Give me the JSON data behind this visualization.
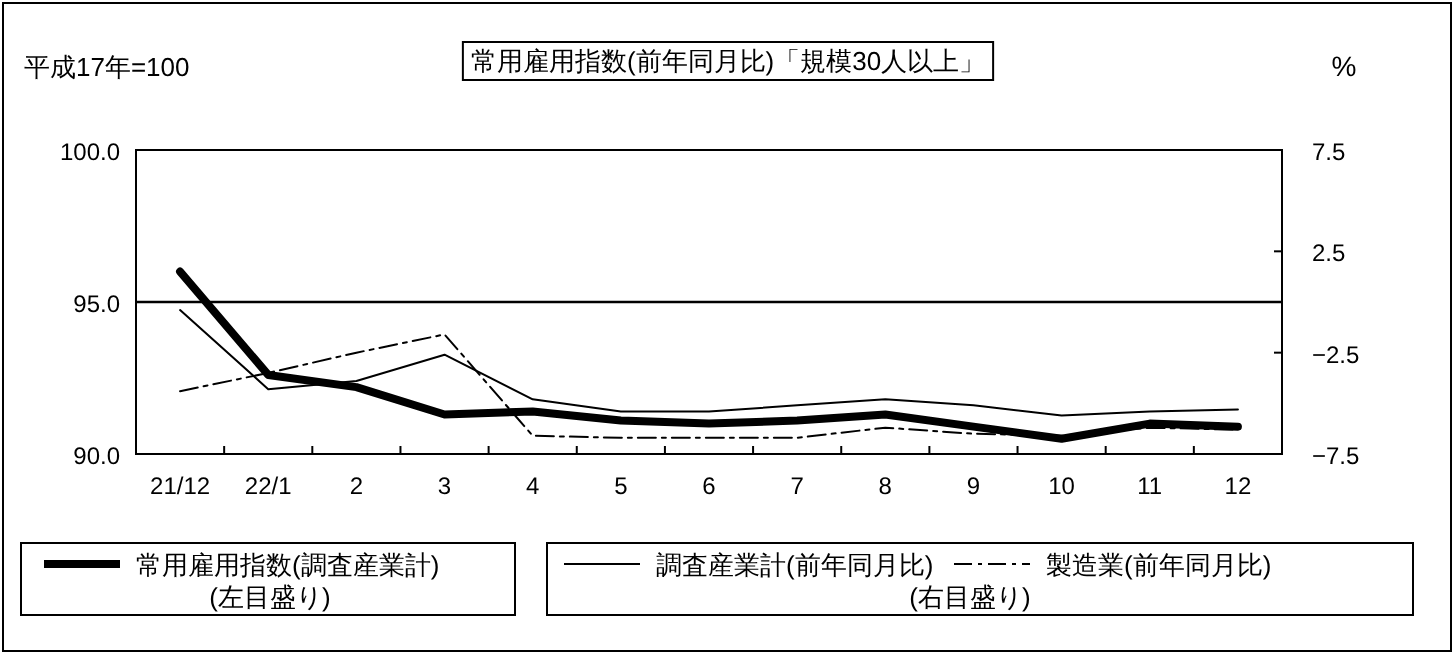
{
  "chart_data": {
    "type": "line",
    "title": "常用雇用指数(前年同月比)「規模30人以上」",
    "y2label": "%",
    "annotations": [
      "平成17年=100",
      "(左目盛り)",
      "(右目盛り)"
    ],
    "categories": [
      "21/12",
      "22/1",
      "2",
      "3",
      "4",
      "5",
      "6",
      "7",
      "8",
      "9",
      "10",
      "11",
      "12"
    ],
    "series": [
      {
        "name": "常用雇用指数(調査産業計)",
        "color": "#000000",
        "axis": "y",
        "line_style": "solid",
        "values": [
          96.0,
          92.6,
          92.2,
          91.3,
          91.4,
          91.1,
          91.0,
          91.1,
          91.3,
          90.9,
          90.5,
          91.0,
          90.9
        ]
      },
      {
        "name": "調査産業計(前年同月比)",
        "color": "#000000",
        "axis": "y2",
        "line_style": "solid",
        "values": [
          -0.4,
          -4.3,
          -3.9,
          -2.6,
          -4.8,
          -5.4,
          -5.4,
          -5.1,
          -4.8,
          -5.1,
          -5.6,
          -5.4,
          -5.3
        ]
      },
      {
        "name": "製造業(前年同月比)",
        "color": "#000000",
        "axis": "y2",
        "line_style": "dashed",
        "values": [
          -4.4,
          -3.5,
          -2.5,
          -1.6,
          -6.6,
          -6.7,
          -6.7,
          -6.7,
          -6.2,
          -6.5,
          -6.6,
          -6.2,
          -6.3
        ]
      }
    ],
    "ylim": [
      90,
      100
    ],
    "yticks": [
      {
        "value": 90,
        "label": "90.0"
      },
      {
        "value": 95,
        "label": "95.0"
      },
      {
        "value": 100,
        "label": "100.0"
      }
    ],
    "y2lim": [
      -7.5,
      7.5
    ],
    "y2ticks": [
      -7.5,
      -2.5,
      2.5,
      7.5
    ],
    "ref_lines": [
      {
        "axis": "y",
        "value": 95,
        "color": "#000000"
      }
    ],
    "grid": false,
    "legend": "bottom"
  }
}
